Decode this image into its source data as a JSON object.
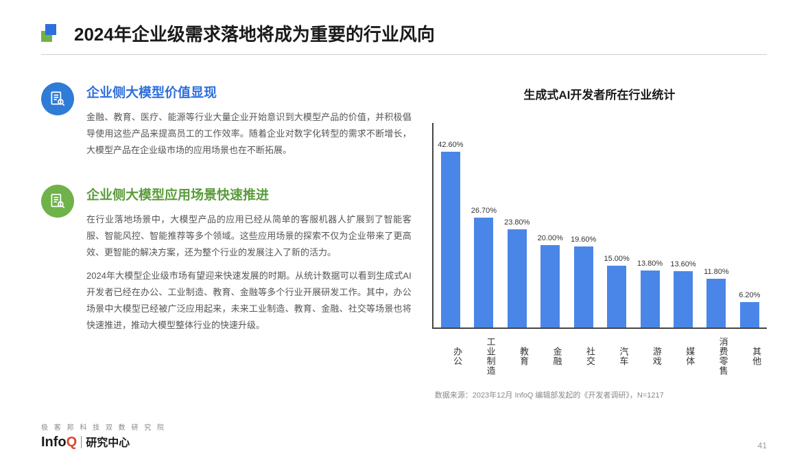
{
  "title": "2024年企业级需求落地将成为重要的行业风向",
  "section1": {
    "title": "企业侧大模型价值显现",
    "body": "金融、教育、医疗、能源等行业大量企业开始意识到大模型产品的价值，并积极倡导使用这些产品来提高员工的工作效率。随着企业对数字化转型的需求不断增长，大模型产品在企业级市场的应用场景也在不断拓展。",
    "icon_bg": "#2e7cd6",
    "title_color": "#2e6fde"
  },
  "section2": {
    "title": "企业侧大模型应用场景快速推进",
    "body1": "在行业落地场景中，大模型产品的应用已经从简单的客服机器人扩展到了智能客服、智能风控、智能推荐等多个领域。这些应用场景的探索不仅为企业带来了更高效、更智能的解决方案，还为整个行业的发展注入了新的活力。",
    "body2": "2024年大模型企业级市场有望迎来快速发展的时期。从统计数据可以看到生成式AI开发者已经在办公、工业制造、教育、金融等多个行业开展研发工作。其中，办公场景中大模型已经被广泛应用起来，未来工业制造、教育、金融、社交等场景也将快速推进，推动大模型整体行业的快速升级。",
    "icon_bg": "#6fb24a",
    "title_color": "#5a9c3a"
  },
  "chart": {
    "title": "生成式AI开发者所在行业统计",
    "type": "bar",
    "bar_color": "#4a86e8",
    "axis_color": "#444444",
    "max_value": 45,
    "label_fontsize": 11,
    "categories": [
      "办公",
      "工业制造",
      "教育",
      "金融",
      "社交",
      "汽车",
      "游戏",
      "媒体",
      "消费零售",
      "其他"
    ],
    "values": [
      42.6,
      26.7,
      23.8,
      20.0,
      19.6,
      15.0,
      13.8,
      13.6,
      11.8,
      6.2
    ],
    "value_labels": [
      "42.60%",
      "26.70%",
      "23.80%",
      "20.00%",
      "19.60%",
      "15.00%",
      "13.80%",
      "13.60%",
      "11.80%",
      "6.20%"
    ],
    "source": "数据来源：2023年12月 InfoQ 编辑部发起的《开发者调研》，N=1217"
  },
  "footer": {
    "sub": "极 客 邦 科 技 双 数 研 究 院",
    "logo_info": "Info",
    "logo_q": "Q",
    "logo_cn": "研究中心",
    "page": "41"
  }
}
